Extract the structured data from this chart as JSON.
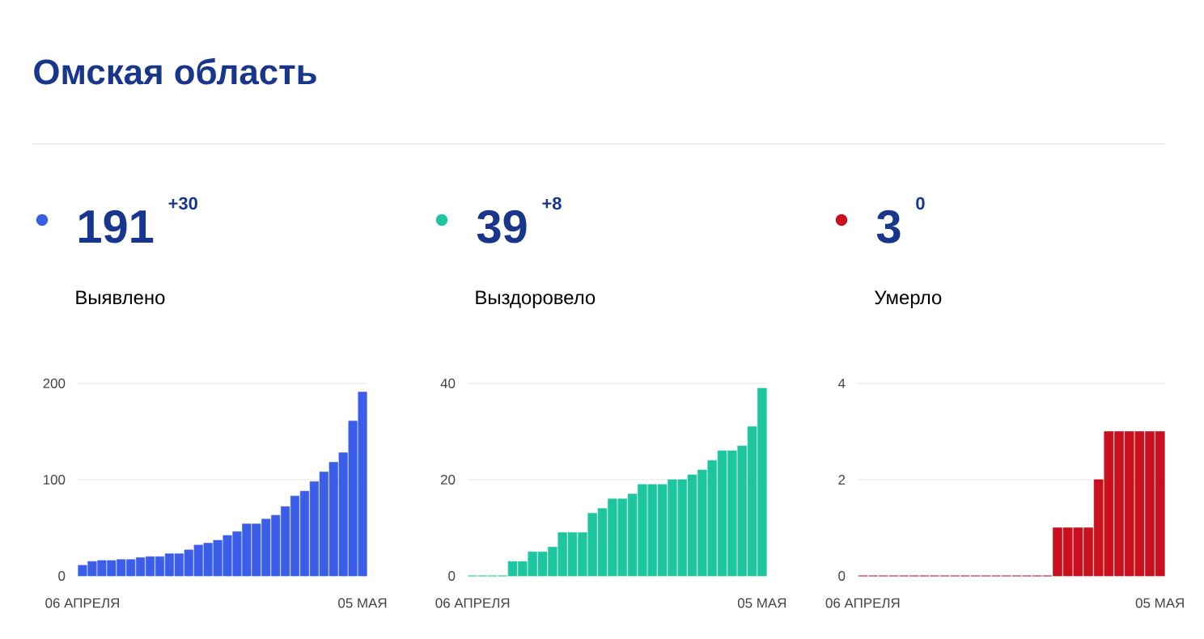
{
  "chart_data": [
    {
      "type": "other",
      "title": "Омская область"
    },
    {
      "type": "bar",
      "subtitle": "Выявлено",
      "annotations": [
        "191",
        "+30"
      ],
      "color": "#3a5ee8",
      "categories": [
        "06 АПРЕЛЯ",
        null,
        null,
        null,
        null,
        null,
        null,
        null,
        null,
        null,
        null,
        null,
        null,
        null,
        null,
        null,
        null,
        null,
        null,
        null,
        null,
        null,
        null,
        null,
        null,
        null,
        null,
        null,
        null,
        "05 МАЯ"
      ],
      "values": [
        11,
        15,
        16,
        16,
        17,
        17,
        19,
        20,
        20,
        23,
        23,
        27,
        32,
        34,
        37,
        42,
        46,
        54,
        54,
        59,
        63,
        72,
        83,
        88,
        98,
        108,
        118,
        128,
        161,
        191
      ],
      "ylim": [
        0,
        200
      ],
      "yticks": [
        0,
        100,
        200
      ],
      "grid": "y"
    },
    {
      "type": "bar",
      "subtitle": "Выздоровело",
      "annotations": [
        "39",
        "+8"
      ],
      "color": "#1ec6a0",
      "categories": [
        "06 АПРЕЛЯ",
        null,
        null,
        null,
        null,
        null,
        null,
        null,
        null,
        null,
        null,
        null,
        null,
        null,
        null,
        null,
        null,
        null,
        null,
        null,
        null,
        null,
        null,
        null,
        null,
        null,
        null,
        null,
        null,
        "05 МАЯ"
      ],
      "values": [
        0,
        0,
        0,
        0,
        3,
        3,
        5,
        5,
        6,
        9,
        9,
        9,
        13,
        14,
        16,
        16,
        17,
        19,
        19,
        19,
        20,
        20,
        21,
        22,
        24,
        26,
        26,
        27,
        31,
        39
      ],
      "ylim": [
        0,
        40
      ],
      "yticks": [
        0,
        20,
        40
      ],
      "grid": "y"
    },
    {
      "type": "bar",
      "subtitle": "Умерло",
      "annotations": [
        "3",
        "0"
      ],
      "color": "#c8101e",
      "categories": [
        "06 АПРЕЛЯ",
        null,
        null,
        null,
        null,
        null,
        null,
        null,
        null,
        null,
        null,
        null,
        null,
        null,
        null,
        null,
        null,
        null,
        null,
        null,
        null,
        null,
        null,
        null,
        null,
        null,
        null,
        null,
        null,
        "05 МАЯ"
      ],
      "values": [
        0,
        0,
        0,
        0,
        0,
        0,
        0,
        0,
        0,
        0,
        0,
        0,
        0,
        0,
        0,
        0,
        0,
        0,
        0,
        1,
        1,
        1,
        1,
        2,
        3,
        3,
        3,
        3,
        3,
        3
      ],
      "ylim": [
        0,
        4
      ],
      "yticks": [
        0,
        2,
        4
      ],
      "grid": "y"
    }
  ]
}
